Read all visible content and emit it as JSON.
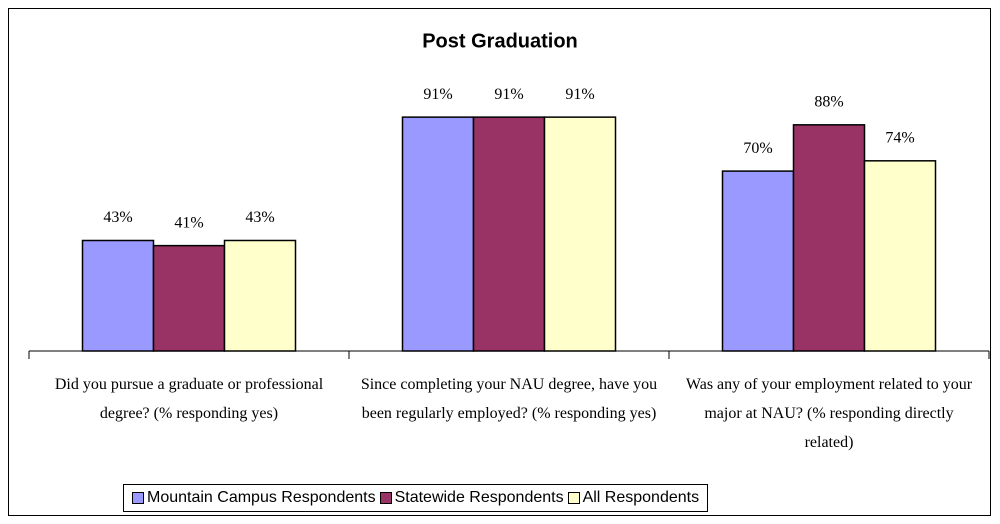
{
  "chart_data": {
    "type": "bar",
    "title": "Post Graduation",
    "categories": [
      "Did you pursue a graduate or professional degree? (% responding yes)",
      "Since completing your NAU degree, have you been regularly employed? (% responding yes)",
      "Was any of your employment related to your major at NAU? (% responding directly related)"
    ],
    "series": [
      {
        "name": "Mountain Campus Respondents",
        "color": "#9999ff",
        "values": [
          43,
          91,
          70
        ],
        "value_labels": [
          "43%",
          "91%",
          "70%"
        ]
      },
      {
        "name": "Statewide Respondents",
        "color": "#993366",
        "values": [
          41,
          91,
          88
        ],
        "value_labels": [
          "41%",
          "91%",
          "88%"
        ]
      },
      {
        "name": "All Respondents",
        "color": "#ffffcc",
        "values": [
          43,
          91,
          74
        ],
        "value_labels": [
          "43%",
          "91%",
          "74%"
        ]
      }
    ],
    "ylim": [
      0,
      100
    ],
    "legend": "bottom"
  }
}
